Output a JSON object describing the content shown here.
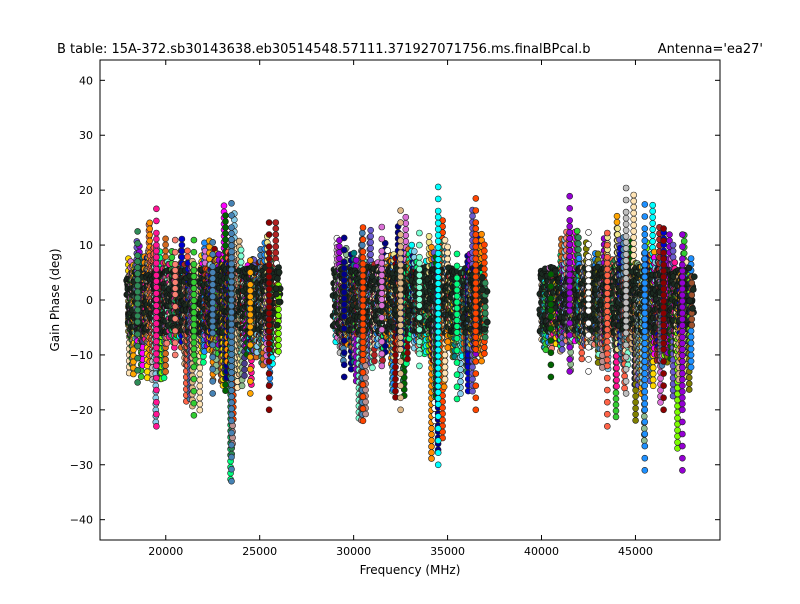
{
  "chart_data": {
    "type": "scatter",
    "title": "B table: 15A-372.sb30143638.eb30514548.57111.371927071756.ms.finalBPcal.b",
    "antenna_label": "Antenna='ea27'",
    "xlabel": "Frequency (MHz)",
    "ylabel": "Gain Phase (deg)",
    "xlim": [
      16500,
      49500
    ],
    "ylim": [
      -43.7,
      43.7
    ],
    "xticks": [
      20000,
      25000,
      30000,
      35000,
      40000,
      45000
    ],
    "yticks": [
      -40,
      -30,
      -20,
      -10,
      0,
      10,
      20,
      30,
      40
    ],
    "xtick_labels": [
      "20000",
      "25000",
      "30000",
      "35000",
      "40000",
      "45000"
    ],
    "ytick_labels": [
      "−40",
      "−30",
      "−20",
      "−10",
      "0",
      "10",
      "20",
      "30",
      "40"
    ],
    "spectral_windows": [
      {
        "freq": [
          18000,
          19000
        ],
        "phase_range": [
          -15,
          13
        ]
      },
      {
        "freq": [
          19000,
          20000
        ],
        "phase_range": [
          -23,
          18
        ]
      },
      {
        "freq": [
          20000,
          21000
        ],
        "phase_range": [
          -10,
          12
        ]
      },
      {
        "freq": [
          21000,
          22000
        ],
        "phase_range": [
          -21,
          12
        ]
      },
      {
        "freq": [
          22000,
          23000
        ],
        "phase_range": [
          -17,
          12
        ]
      },
      {
        "freq": [
          23000,
          24000
        ],
        "phase_range": [
          -33,
          19
        ]
      },
      {
        "freq": [
          24000,
          25000
        ],
        "phase_range": [
          -17,
          8
        ]
      },
      {
        "freq": [
          25000,
          26000
        ],
        "phase_range": [
          -20,
          15
        ]
      },
      {
        "freq": [
          29000,
          30000
        ],
        "phase_range": [
          -14,
          12
        ]
      },
      {
        "freq": [
          30000,
          31000
        ],
        "phase_range": [
          -22,
          14
        ]
      },
      {
        "freq": [
          31000,
          32000
        ],
        "phase_range": [
          -12,
          14
        ]
      },
      {
        "freq": [
          32000,
          33000
        ],
        "phase_range": [
          -20,
          17
        ]
      },
      {
        "freq": [
          33000,
          34000
        ],
        "phase_range": [
          -12,
          13
        ]
      },
      {
        "freq": [
          34000,
          35000
        ],
        "phase_range": [
          -30,
          22
        ]
      },
      {
        "freq": [
          35000,
          36000
        ],
        "phase_range": [
          -18,
          9
        ]
      },
      {
        "freq": [
          36000,
          37000
        ],
        "phase_range": [
          -20,
          19
        ]
      },
      {
        "freq": [
          40000,
          41000
        ],
        "phase_range": [
          -14,
          6
        ]
      },
      {
        "freq": [
          41000,
          42000
        ],
        "phase_range": [
          -13,
          20
        ]
      },
      {
        "freq": [
          42000,
          43000
        ],
        "phase_range": [
          -13,
          13
        ]
      },
      {
        "freq": [
          43000,
          44000
        ],
        "phase_range": [
          -23,
          13
        ]
      },
      {
        "freq": [
          44000,
          45000
        ],
        "phase_range": [
          -17,
          21
        ]
      },
      {
        "freq": [
          45000,
          46000
        ],
        "phase_range": [
          -31,
          18
        ]
      },
      {
        "freq": [
          46000,
          47000
        ],
        "phase_range": [
          -20,
          14
        ]
      },
      {
        "freq": [
          47000,
          48000
        ],
        "phase_range": [
          -31,
          13
        ]
      }
    ],
    "palette": [
      "#87ceeb",
      "#00ff7f",
      "#4682b4",
      "#ffffff",
      "#7fffd4",
      "#ff6347",
      "#00ffff",
      "#b22222",
      "#deb887",
      "#6a5acd",
      "#808000",
      "#ffa500",
      "#f0e68c",
      "#ff4500",
      "#da70d6",
      "#d2691e",
      "#a0522d",
      "#2e8b57",
      "#c0c0c0",
      "#8b0000",
      "#0000cd",
      "#9400d3",
      "#ff1493",
      "#32cd32",
      "#ffd700",
      "#7cfc00",
      "#ff00ff",
      "#1e90ff",
      "#000080",
      "#008080",
      "#bc8f8f",
      "#fa8072",
      "#8fbc8f",
      "#ffe4b5",
      "#00008b",
      "#ff8c00",
      "#006400",
      "#483d8b"
    ]
  }
}
